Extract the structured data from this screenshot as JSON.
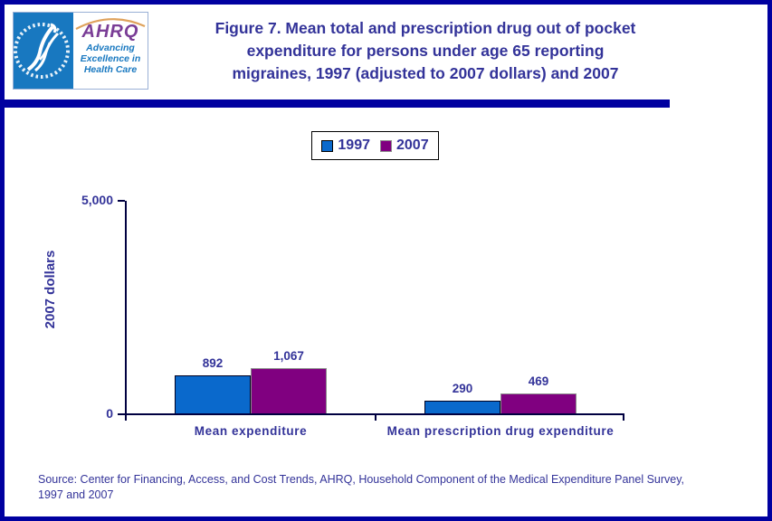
{
  "colors": {
    "frame_border": "#0000A0",
    "text_navy": "#333399",
    "axis": "#000040",
    "logo_blue": "#1878c0",
    "logo_purple": "#7a3d96",
    "logo_arc_orange": "#d9923f"
  },
  "logo": {
    "acronym": "AHRQ",
    "tagline": [
      "Advancing",
      "Excellence in",
      "Health Care"
    ]
  },
  "title": {
    "lines": [
      "Figure 7. Mean total and prescription drug out of pocket",
      "expenditure for persons under age 65 reporting",
      "migraines, 1997 (adjusted to 2007 dollars) and 2007"
    ]
  },
  "chart_data": {
    "type": "bar",
    "categories": [
      "Mean expenditure",
      "Mean prescription drug expenditure"
    ],
    "series": [
      {
        "name": "1997",
        "color": "#0a69cc",
        "values": [
          892,
          290
        ],
        "value_labels": [
          "892",
          "290"
        ]
      },
      {
        "name": "2007",
        "color": "#800080",
        "values": [
          1067,
          469
        ],
        "value_labels": [
          "1,067",
          "469"
        ]
      }
    ],
    "ylabel": "2007 dollars",
    "ylim": [
      0,
      5000
    ],
    "ytick_labels": [
      "0",
      "5,000"
    ],
    "legend_position": "top-center",
    "grid": false
  },
  "source": {
    "lines": [
      "Source: Center for Financing, Access, and Cost Trends, AHRQ, Household Component of the Medical Expenditure Panel Survey,",
      "1997 and 2007"
    ]
  }
}
